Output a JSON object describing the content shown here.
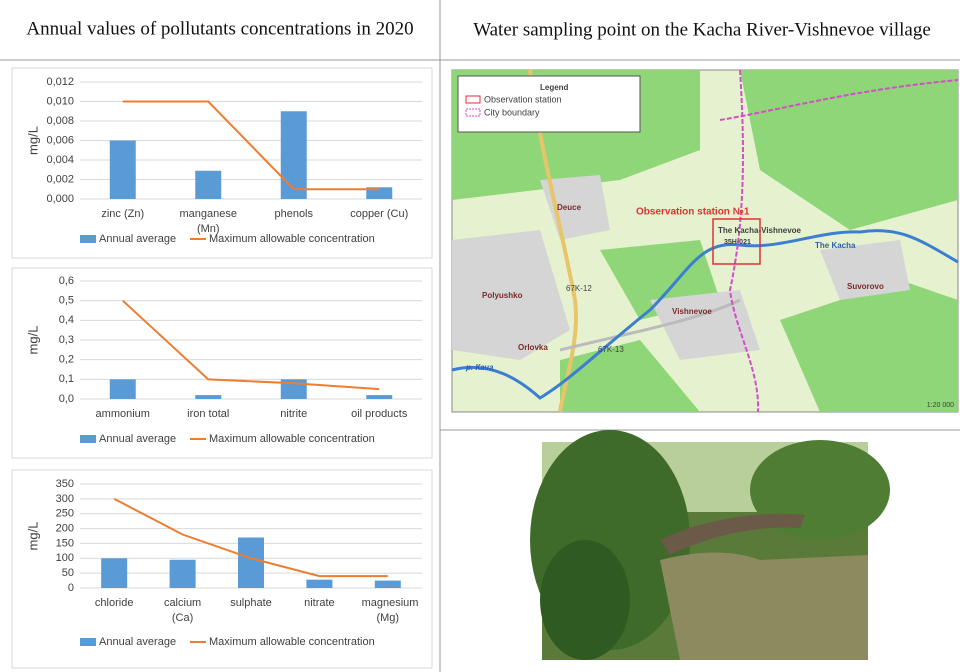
{
  "left_title": "Annual values of pollutants concentrations in 2020",
  "right_title": "Water sampling point on the Kacha River-Vishnevoe village",
  "chart_data": [
    {
      "type": "bar",
      "y_label": "mg/L",
      "grid": true,
      "categories": [
        "zinc (Zn)",
        "manganese (Mn)",
        "phenols",
        "copper (Cu)"
      ],
      "ylim": [
        0,
        0.012
      ],
      "yticks": [
        {
          "value": 0,
          "label": "0,000"
        },
        {
          "value": 0.002,
          "label": "0,002"
        },
        {
          "value": 0.004,
          "label": "0,004"
        },
        {
          "value": 0.006,
          "label": "0,006"
        },
        {
          "value": 0.008,
          "label": "0,008"
        },
        {
          "value": 0.01,
          "label": "0,010"
        },
        {
          "value": 0.012,
          "label": "0,012"
        }
      ],
      "series": [
        {
          "name": "Annual average",
          "type": "bar",
          "color": "#5b9bd5",
          "values": [
            0.006,
            0.0029,
            0.009,
            0.0012
          ]
        },
        {
          "name": "Maximum allowable concentration",
          "type": "line",
          "color": "#ed7d31",
          "values": [
            0.01,
            0.01,
            0.001,
            0.001
          ]
        }
      ]
    },
    {
      "type": "bar",
      "y_label": "mg/L",
      "grid": true,
      "categories": [
        "ammonium",
        "iron total",
        "nitrite",
        "oil products"
      ],
      "ylim": [
        0,
        0.6
      ],
      "yticks": [
        {
          "value": 0,
          "label": "0,0"
        },
        {
          "value": 0.1,
          "label": "0,1"
        },
        {
          "value": 0.2,
          "label": "0,2"
        },
        {
          "value": 0.3,
          "label": "0,3"
        },
        {
          "value": 0.4,
          "label": "0,4"
        },
        {
          "value": 0.5,
          "label": "0,5"
        },
        {
          "value": 0.6,
          "label": "0,6"
        }
      ],
      "series": [
        {
          "name": "Annual average",
          "type": "bar",
          "color": "#5b9bd5",
          "values": [
            0.1,
            0.02,
            0.1,
            0.02
          ]
        },
        {
          "name": "Maximum allowable concentration",
          "type": "line",
          "color": "#ed7d31",
          "values": [
            0.5,
            0.1,
            0.08,
            0.05
          ]
        }
      ]
    },
    {
      "type": "bar",
      "y_label": "mg/L",
      "grid": true,
      "categories": [
        "chloride",
        "calcium (Ca)",
        "sulphate",
        "nitrate",
        "magnesium (Mg)"
      ],
      "ylim": [
        0,
        350
      ],
      "yticks": [
        0,
        50,
        100,
        150,
        200,
        250,
        300,
        350
      ],
      "series": [
        {
          "name": "Annual average",
          "type": "bar",
          "color": "#5b9bd5",
          "values": [
            100,
            95,
            170,
            28,
            25
          ]
        },
        {
          "name": "Maximum allowable concentration",
          "type": "line",
          "color": "#ed7d31",
          "values": [
            300,
            180,
            100,
            40,
            40
          ]
        }
      ]
    }
  ],
  "map": {
    "legend_title": "Legend",
    "legend_items": [
      "Observation station",
      "City boundary"
    ],
    "labels": [
      "Observation station №1",
      "The Kacha-Vishnevoe",
      "35H-021",
      "The Kacha",
      "Deuce",
      "Polyushko",
      "Orlovka",
      "Vishnevoe",
      "Suvorovo",
      "67K-12",
      "67K-13",
      "р. Кача"
    ],
    "scale": "1:20 000"
  }
}
